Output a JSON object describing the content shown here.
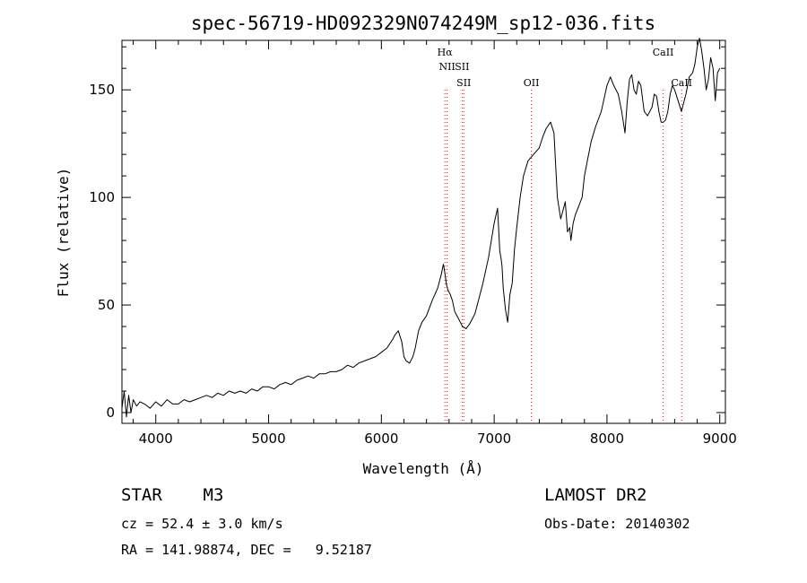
{
  "chart_data": {
    "type": "line",
    "title": "spec-56719-HD092329N074249M_sp12-036.fits",
    "xlabel": "Wavelength (Å)",
    "ylabel": "Flux (relative)",
    "xlim": [
      3700,
      9050
    ],
    "ylim": [
      -5,
      173
    ],
    "x_ticks": [
      4000,
      5000,
      6000,
      7000,
      8000,
      9000
    ],
    "y_ticks": [
      0,
      50,
      100,
      150
    ],
    "x_tick_labels": [
      "4000",
      "5000",
      "6000",
      "7000",
      "8000",
      "9000"
    ],
    "y_tick_labels": [
      "0",
      "50",
      "100",
      "150"
    ],
    "grid": false,
    "series": [
      {
        "color": "#000000",
        "x": [
          3700,
          3720,
          3740,
          3760,
          3780,
          3800,
          3830,
          3860,
          3900,
          3950,
          4000,
          4050,
          4100,
          4150,
          4200,
          4250,
          4300,
          4350,
          4400,
          4450,
          4500,
          4550,
          4600,
          4650,
          4700,
          4750,
          4800,
          4850,
          4900,
          4950,
          5000,
          5050,
          5100,
          5150,
          5200,
          5250,
          5300,
          5350,
          5400,
          5450,
          5500,
          5550,
          5600,
          5650,
          5700,
          5750,
          5800,
          5850,
          5900,
          5950,
          6000,
          6050,
          6100,
          6120,
          6150,
          6180,
          6200,
          6220,
          6250,
          6280,
          6300,
          6330,
          6360,
          6400,
          6450,
          6500,
          6530,
          6550,
          6563,
          6575,
          6590,
          6610,
          6630,
          6650,
          6680,
          6700,
          6720,
          6750,
          6780,
          6800,
          6830,
          6860,
          6900,
          6950,
          7000,
          7030,
          7050,
          7060,
          7070,
          7080,
          7100,
          7120,
          7140,
          7160,
          7180,
          7200,
          7230,
          7260,
          7300,
          7350,
          7400,
          7430,
          7460,
          7500,
          7530,
          7560,
          7590,
          7610,
          7630,
          7650,
          7670,
          7680,
          7700,
          7720,
          7750,
          7780,
          7800,
          7830,
          7860,
          7900,
          7950,
          8000,
          8030,
          8060,
          8100,
          8130,
          8160,
          8180,
          8200,
          8220,
          8240,
          8260,
          8280,
          8300,
          8330,
          8360,
          8400,
          8420,
          8440,
          8460,
          8480,
          8500,
          8520,
          8540,
          8560,
          8580,
          8600,
          8630,
          8660,
          8700,
          8730,
          8760,
          8780,
          8800,
          8820,
          8840,
          8860,
          8880,
          8900,
          8920,
          8940,
          8960,
          8980,
          9000
        ],
        "y": [
          2,
          10,
          -2,
          8,
          0,
          6,
          3,
          5,
          4,
          2,
          5,
          3,
          6,
          4,
          4,
          6,
          5,
          6,
          7,
          8,
          7,
          9,
          8,
          10,
          9,
          10,
          9,
          11,
          10,
          12,
          12,
          11,
          13,
          14,
          13,
          15,
          16,
          17,
          16,
          18,
          18,
          19,
          19,
          20,
          22,
          21,
          23,
          24,
          25,
          26,
          28,
          30,
          34,
          36,
          38,
          33,
          26,
          24,
          23,
          26,
          30,
          38,
          42,
          45,
          52,
          58,
          64,
          69,
          65,
          60,
          57,
          55,
          52,
          47,
          44,
          42,
          40,
          39,
          41,
          43,
          46,
          52,
          60,
          72,
          88,
          95,
          75,
          72,
          68,
          58,
          48,
          42,
          55,
          60,
          76,
          86,
          100,
          110,
          117,
          120,
          123,
          128,
          132,
          135,
          130,
          100,
          90,
          94,
          98,
          84,
          86,
          80,
          88,
          92,
          96,
          100,
          110,
          118,
          126,
          133,
          140,
          152,
          156,
          152,
          148,
          140,
          130,
          145,
          155,
          157,
          150,
          148,
          154,
          152,
          140,
          138,
          142,
          148,
          147,
          140,
          135,
          135,
          136,
          140,
          148,
          152,
          150,
          145,
          140,
          148,
          156,
          158,
          162,
          170,
          174,
          168,
          160,
          150,
          155,
          165,
          160,
          145,
          158,
          160
        ]
      }
    ],
    "line_markers": [
      {
        "label": "Hα",
        "x": 6563,
        "row": 0
      },
      {
        "label": "NII",
        "x": 6583,
        "row": 1
      },
      {
        "label": "SII",
        "x": 6716,
        "row": 1
      },
      {
        "label": "SII",
        "x": 6731,
        "row": 2
      },
      {
        "label": "OII",
        "x": 7330,
        "row": 2
      },
      {
        "label": "CaII",
        "x": 8498,
        "row": 0
      },
      {
        "label": "CaII",
        "x": 8662,
        "row": 2
      }
    ],
    "marker_color": "#ff0000"
  },
  "info": {
    "object": "STAR    M3",
    "survey": "LAMOST DR2",
    "cz": "cz = 52.4 ± 3.0 km/s",
    "obs_date": "Obs-Date: 20140302",
    "coords": "RA = 141.98874, DEC =   9.52187"
  }
}
